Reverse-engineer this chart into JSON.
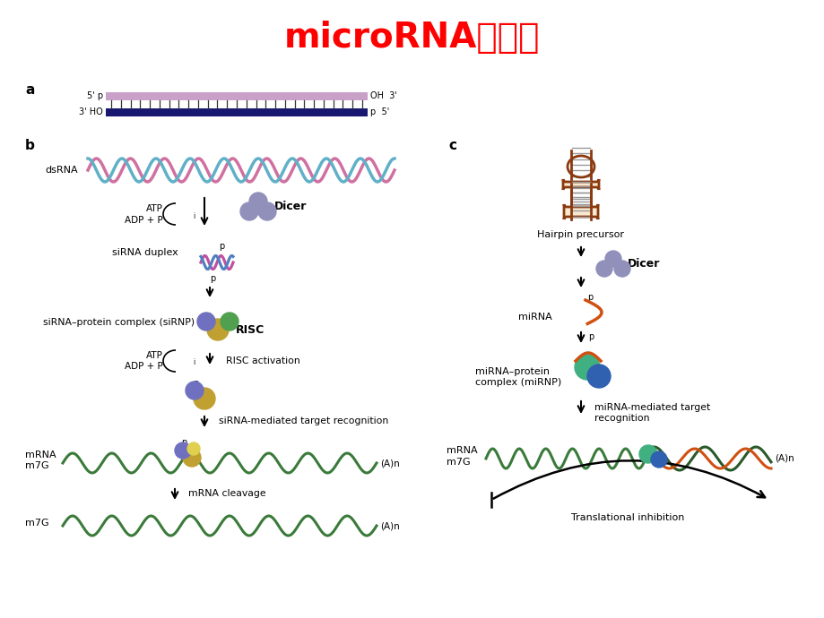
{
  "title": "microRNA的调控",
  "title_color": "#FF0000",
  "title_fontsize": 28,
  "title_weight": "bold",
  "bg_color": "#FFFFFF",
  "fig_width": 9.2,
  "fig_height": 6.9,
  "dpi": 100,
  "panel_a_label": "a",
  "panel_b_label": "b",
  "panel_c_label": "c",
  "dsrna_label": "dsRNA",
  "atp_label": "ATP",
  "adp_label": "ADP + P",
  "dicer_label": "Dicer",
  "sirna_duplex_label": "siRNA duplex",
  "sirna_complex_label": "siRNA–protein complex (siRNP)",
  "risc_label": "RISC",
  "risc_activation_label": "RISC activation",
  "sirna_recognition_label": "siRNA-mediated target recognition",
  "mrna_label": "mRNA",
  "m7g_label": "m7G",
  "an_label": "(A)n",
  "cleavage_label": "mRNA cleavage",
  "hairpin_label": "Hairpin precursor",
  "mirna_label": "miRNA",
  "mirna_recognition_label1": "miRNA-mediated target",
  "mirna_recognition_label2": "recognition",
  "trans_inhibition_label": "Translational inhibition",
  "mirna_complex_label1": "miRNA–protein",
  "mirna_complex_label2": "complex (miRNP)"
}
